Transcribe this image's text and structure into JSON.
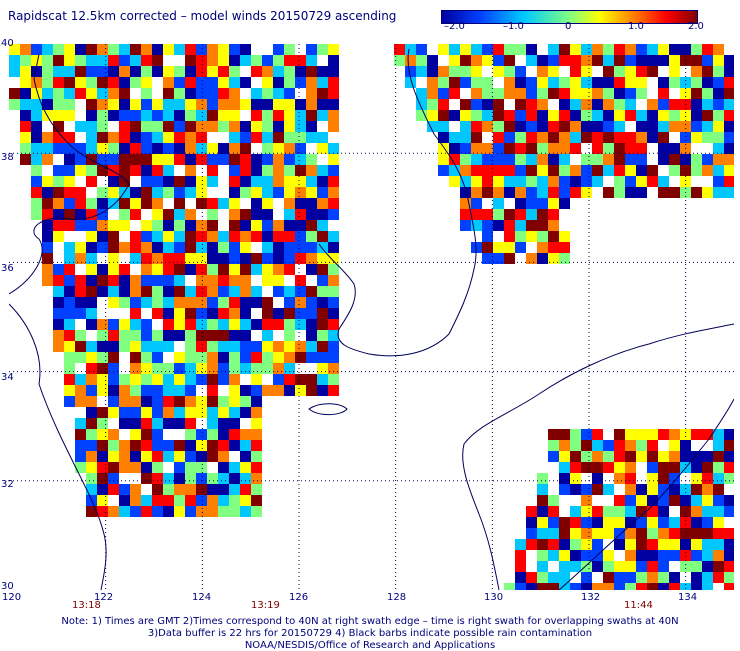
{
  "title": "Rapidscat 12.5km corrected – model winds 20150729 ascending",
  "colorbar": {
    "ticks": [
      "–2.0",
      "–1.0",
      "0",
      "1.0",
      "2.0"
    ],
    "range": [
      -2.0,
      2.0
    ],
    "colors": [
      "#0000a0",
      "#0040ff",
      "#00c8ff",
      "#80ff80",
      "#ffff00",
      "#ff8000",
      "#ff0000",
      "#800000"
    ]
  },
  "map": {
    "lon_range": [
      120,
      135
    ],
    "lat_range": [
      30,
      40
    ],
    "lon_labels": [
      "120",
      "122",
      "124",
      "126",
      "128",
      "130",
      "132",
      "134"
    ],
    "lat_labels": [
      "40",
      "38",
      "36",
      "34",
      "32",
      "30"
    ],
    "grid": "dotted every 2 degrees",
    "coastline_color": "#00005a"
  },
  "swath_times": [
    "13:18",
    "13:19",
    "11:44"
  ],
  "notes": {
    "line1": "Note: 1) Times are GMT 2)Times correspond to 40N at right swath edge – time is right swath for overlapping swaths at 40N",
    "line2": "3)Data buffer is 22 hrs for 20150729 4) Black barbs indicate possible rain contamination",
    "line3": "NOAA/NESDIS/Office of Research and Applications"
  }
}
